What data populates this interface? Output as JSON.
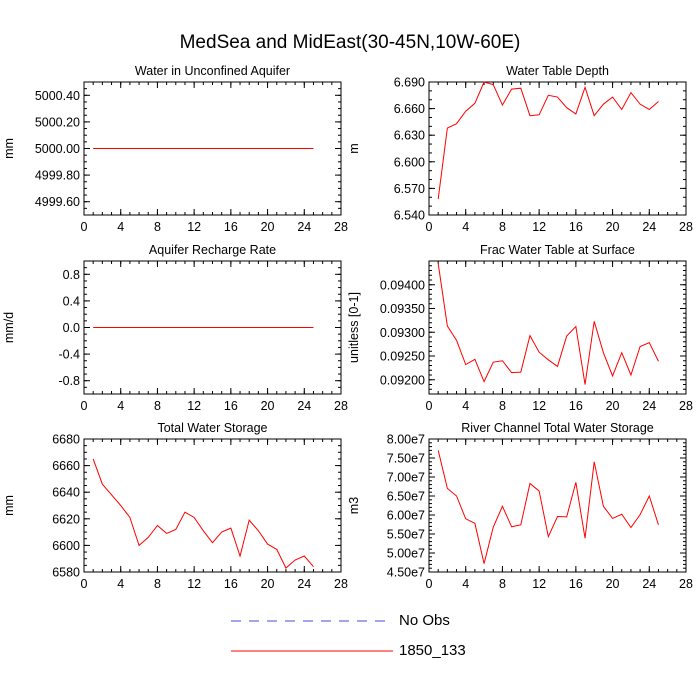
{
  "figure": {
    "title": "MedSea and MidEast(30-45N,10W-60E)"
  },
  "legend": [
    {
      "label": "No Obs",
      "color": "#4a4ad0",
      "style": "dashed"
    },
    {
      "label": "1850_133",
      "color": "#ff0000",
      "style": "solid"
    }
  ],
  "chart_data": [
    {
      "type": "line",
      "title": "Water in Unconfined Aquifer",
      "xlabel": "",
      "ylabel": "mm",
      "xlim": [
        0,
        28
      ],
      "ylim": [
        4999.5,
        5000.5
      ],
      "xticks": [
        0,
        4,
        8,
        12,
        16,
        20,
        24,
        28
      ],
      "xminor": 1,
      "yticks": [
        4999.6,
        4999.8,
        5000.0,
        5000.2,
        5000.4
      ],
      "yticklabels": [
        "4999.60",
        "4999.80",
        "5000.00",
        "5000.20",
        "5000.40"
      ],
      "yminor": 0.05,
      "series": [
        {
          "name": "1850_133",
          "color": "#ff0000",
          "x": [
            1,
            25
          ],
          "values": [
            5000.0,
            5000.0
          ]
        }
      ]
    },
    {
      "type": "line",
      "title": "Water Table Depth",
      "xlabel": "",
      "ylabel": "m",
      "xlim": [
        0,
        28
      ],
      "ylim": [
        6.54,
        6.69
      ],
      "xticks": [
        0,
        4,
        8,
        12,
        16,
        20,
        24,
        28
      ],
      "xminor": 1,
      "yticks": [
        6.54,
        6.57,
        6.6,
        6.63,
        6.66,
        6.69
      ],
      "yticklabels": [
        "6.540",
        "6.570",
        "6.600",
        "6.630",
        "6.660",
        "6.690"
      ],
      "yminor": 0.01,
      "series": [
        {
          "name": "1850_133",
          "color": "#ff0000",
          "x": [
            1,
            2,
            3,
            4,
            5,
            6,
            7,
            8,
            9,
            10,
            11,
            12,
            13,
            14,
            15,
            16,
            17,
            18,
            19,
            20,
            21,
            22,
            23,
            24,
            25
          ],
          "values": [
            6.558,
            6.638,
            6.643,
            6.657,
            6.666,
            6.69,
            6.687,
            6.664,
            6.682,
            6.683,
            6.652,
            6.653,
            6.675,
            6.673,
            6.661,
            6.654,
            6.684,
            6.652,
            6.665,
            6.673,
            6.659,
            6.678,
            6.665,
            6.659,
            6.668
          ]
        }
      ]
    },
    {
      "type": "line",
      "title": "Aquifer Recharge Rate",
      "xlabel": "",
      "ylabel": "mm/d",
      "xlim": [
        0,
        28
      ],
      "ylim": [
        -1.0,
        1.0
      ],
      "xticks": [
        0,
        4,
        8,
        12,
        16,
        20,
        24,
        28
      ],
      "xminor": 1,
      "yticks": [
        -0.8,
        -0.4,
        0.0,
        0.4,
        0.8
      ],
      "yticklabels": [
        "-0.8",
        "-0.4",
        "0.0",
        "0.4",
        "0.8"
      ],
      "yminor": 0.1,
      "series": [
        {
          "name": "1850_133",
          "color": "#ff0000",
          "x": [
            1,
            25
          ],
          "values": [
            0.0,
            0.0
          ]
        }
      ]
    },
    {
      "type": "line",
      "title": "Frac Water Table at Surface",
      "xlabel": "",
      "ylabel": "unitless [0-1]",
      "xlim": [
        0,
        28
      ],
      "ylim": [
        0.0917,
        0.0945
      ],
      "xticks": [
        0,
        4,
        8,
        12,
        16,
        20,
        24,
        28
      ],
      "xminor": 1,
      "yticks": [
        0.092,
        0.0925,
        0.093,
        0.0935,
        0.094
      ],
      "yticklabels": [
        "0.09200",
        "0.09250",
        "0.09300",
        "0.09350",
        "0.09400"
      ],
      "yminor": 0.0001,
      "series": [
        {
          "name": "1850_133",
          "color": "#ff0000",
          "x": [
            1,
            2,
            3,
            4,
            5,
            6,
            7,
            8,
            9,
            10,
            11,
            12,
            13,
            14,
            15,
            16,
            17,
            18,
            19,
            20,
            21,
            22,
            23,
            24,
            25
          ],
          "values": [
            0.09445,
            0.09313,
            0.09283,
            0.09232,
            0.09243,
            0.09196,
            0.09237,
            0.0924,
            0.09215,
            0.09216,
            0.09293,
            0.09258,
            0.09242,
            0.09228,
            0.09292,
            0.09312,
            0.0919,
            0.09323,
            0.09257,
            0.09208,
            0.09257,
            0.0921,
            0.0927,
            0.09278,
            0.09239
          ]
        }
      ]
    },
    {
      "type": "line",
      "title": "Total Water Storage",
      "xlabel": "",
      "ylabel": "mm",
      "xlim": [
        0,
        28
      ],
      "ylim": [
        6580,
        6680
      ],
      "xticks": [
        0,
        4,
        8,
        12,
        16,
        20,
        24,
        28
      ],
      "xminor": 1,
      "yticks": [
        6580,
        6600,
        6620,
        6640,
        6660,
        6680
      ],
      "yticklabels": [
        "6580",
        "6600",
        "6620",
        "6640",
        "6660",
        "6680"
      ],
      "yminor": 5,
      "series": [
        {
          "name": "1850_133",
          "color": "#ff0000",
          "x": [
            1,
            2,
            3,
            4,
            5,
            6,
            7,
            8,
            9,
            10,
            11,
            12,
            13,
            14,
            15,
            16,
            17,
            18,
            19,
            20,
            21,
            22,
            23,
            24,
            25
          ],
          "values": [
            6665,
            6646,
            6638,
            6630,
            6621,
            6600,
            6606,
            6615,
            6609,
            6612,
            6625,
            6621,
            6611,
            6602,
            6610,
            6613,
            6592,
            6619,
            6611,
            6601,
            6597,
            6583,
            6589,
            6592,
            6584
          ]
        }
      ]
    },
    {
      "type": "line",
      "title": "River Channel Total Water Storage",
      "xlabel": "",
      "ylabel": "m3",
      "xlim": [
        0,
        28
      ],
      "ylim": [
        45000000,
        80000000
      ],
      "xticks": [
        0,
        4,
        8,
        12,
        16,
        20,
        24,
        28
      ],
      "xminor": 1,
      "yticks": [
        45000000,
        50000000,
        55000000,
        60000000,
        65000000,
        70000000,
        75000000,
        80000000
      ],
      "yticklabels": [
        "4.50e7",
        "5.00e7",
        "5.50e7",
        "6.00e7",
        "6.50e7",
        "7.00e7",
        "7.50e7",
        "8.00e7"
      ],
      "yminor": 1000000,
      "series": [
        {
          "name": "1850_133",
          "color": "#ff0000",
          "x": [
            1,
            2,
            3,
            4,
            5,
            6,
            7,
            8,
            9,
            10,
            11,
            12,
            13,
            14,
            15,
            16,
            17,
            18,
            19,
            20,
            21,
            22,
            23,
            24,
            25
          ],
          "values": [
            77000000,
            67000000,
            65000000,
            59000000,
            57800000,
            47200000,
            56800000,
            62300000,
            56900000,
            57400000,
            68300000,
            66300000,
            54300000,
            59600000,
            59500000,
            68600000,
            53900000,
            74000000,
            62300000,
            59100000,
            60200000,
            56700000,
            60100000,
            65000000,
            57400000
          ]
        }
      ]
    }
  ]
}
